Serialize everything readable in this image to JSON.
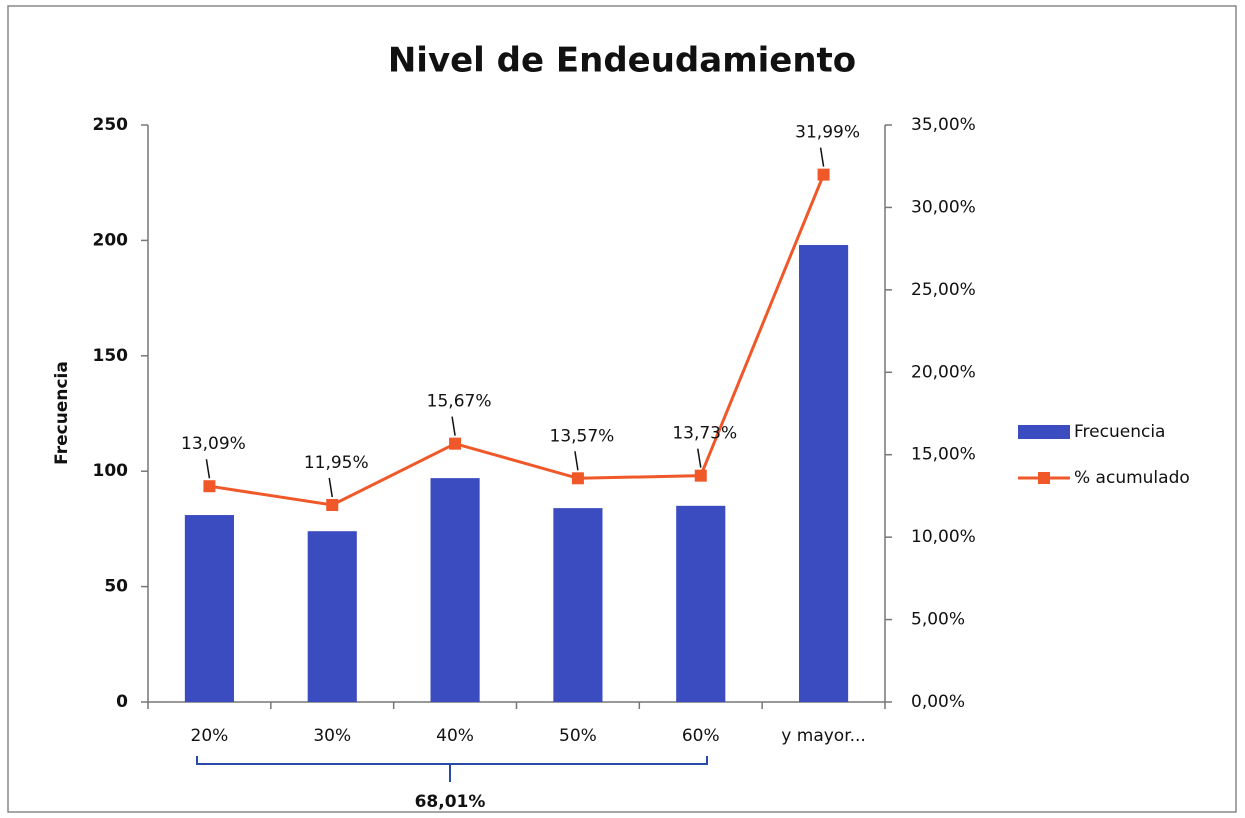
{
  "chart_data": {
    "type": "bar",
    "title": "Nivel de Endeudamiento",
    "y_label": "Frecuencia",
    "categories": [
      "20%",
      "30%",
      "40%",
      "50%",
      "60%",
      "y mayor..."
    ],
    "series": [
      {
        "name": "Frecuencia",
        "type": "bar",
        "color": "#3a4cc0",
        "values": [
          81,
          74,
          97,
          84,
          85,
          198
        ]
      },
      {
        "name": "% acumulado",
        "type": "line",
        "axis": "y2",
        "color": "#f0582a",
        "values": [
          13.09,
          11.95,
          15.67,
          13.57,
          13.73,
          31.99
        ],
        "value_labels": [
          "13,09%",
          "11,95%",
          "15,67%",
          "13,57%",
          "13,73%",
          "31,99%"
        ]
      }
    ],
    "ylim": [
      0,
      250
    ],
    "yticks": [
      0,
      50,
      100,
      150,
      200,
      250
    ],
    "y2lim": [
      0,
      35
    ],
    "y2ticks": [
      {
        "value": 0,
        "label": "0,00%"
      },
      {
        "value": 5,
        "label": "5,00%"
      },
      {
        "value": 10,
        "label": "10,00%"
      },
      {
        "value": 15,
        "label": "15,00%"
      },
      {
        "value": 20,
        "label": "20,00%"
      },
      {
        "value": 25,
        "label": "25,00%"
      },
      {
        "value": 30,
        "label": "30,00%"
      },
      {
        "value": 35,
        "label": "35,00%"
      }
    ],
    "annotation": "68,01%",
    "legend": "right",
    "grid": false
  }
}
